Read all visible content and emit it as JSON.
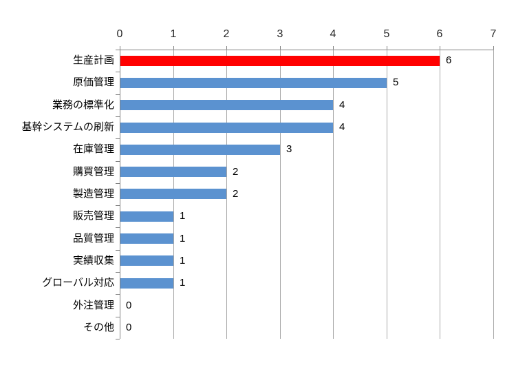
{
  "chart_data": {
    "type": "bar",
    "orientation": "horizontal",
    "title": "",
    "xlabel": "",
    "ylabel": "",
    "categories": [
      "生産計画",
      "原価管理",
      "業務の標準化",
      "基幹システムの刷新",
      "在庫管理",
      "購買管理",
      "製造管理",
      "販売管理",
      "品質管理",
      "実績収集",
      "グローバル対応",
      "外注管理",
      "その他"
    ],
    "values": [
      6,
      5,
      4,
      4,
      3,
      2,
      2,
      1,
      1,
      1,
      1,
      0,
      0
    ],
    "data_labels": [
      "6",
      "5",
      "4",
      "4",
      "3",
      "2",
      "2",
      "1",
      "1",
      "1",
      "1",
      "0",
      "0"
    ],
    "xlim": [
      0,
      7
    ],
    "x_ticks": [
      "0",
      "1",
      "2",
      "3",
      "4",
      "5",
      "6",
      "7"
    ],
    "grid": true,
    "legend": false,
    "value_axis_position": "top",
    "colors": {
      "highlight_index": 0,
      "highlight_bar": "#ff0000",
      "default_bar": "#5b92d0",
      "gridline": "#a6a6a6",
      "axis_line": "#808080",
      "tick_label": "#262626",
      "data_label": "#000000"
    }
  }
}
